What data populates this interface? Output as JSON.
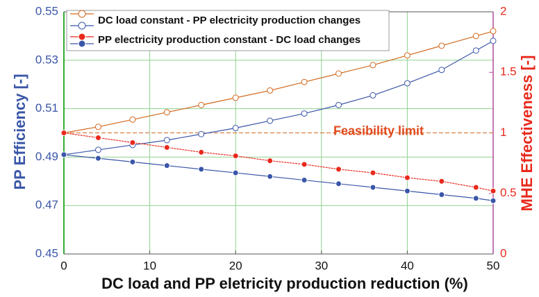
{
  "chart_data": {
    "type": "line",
    "x_label": "DC load and PP eletricity production reduction (%)",
    "y_label": "PP Efficiency  [-]",
    "y2_label": "MHE Effectiveness  [-]",
    "x": [
      0,
      4,
      8,
      12,
      16,
      20,
      24,
      28,
      32,
      36,
      40,
      44,
      48,
      50
    ],
    "series": [
      {
        "name": "DC load constant - PP electricity production changes",
        "color": "#d2691e",
        "marker": "open",
        "axis": "y2",
        "values": [
          1.0,
          1.05,
          1.11,
          1.17,
          1.23,
          1.29,
          1.35,
          1.42,
          1.49,
          1.56,
          1.64,
          1.72,
          1.8,
          1.84
        ]
      },
      {
        "name": "DC load constant - PP electricity production changes",
        "color": "#3a56a8",
        "marker": "open",
        "values": [
          0.491,
          0.493,
          0.495,
          0.497,
          0.4995,
          0.502,
          0.505,
          0.508,
          0.5115,
          0.5155,
          0.5205,
          0.526,
          0.534,
          0.538
        ]
      },
      {
        "name": "PP electricity production constant - DC load changes",
        "color": "#e8291c",
        "marker": "filled",
        "axis": "y2",
        "values": [
          1.0,
          0.96,
          0.92,
          0.88,
          0.84,
          0.81,
          0.77,
          0.74,
          0.7,
          0.67,
          0.63,
          0.6,
          0.55,
          0.52
        ]
      },
      {
        "name": "PP electricity production constant - DC load changes",
        "color": "#3a56a8",
        "marker": "filled",
        "values": [
          0.491,
          0.4895,
          0.488,
          0.4865,
          0.485,
          0.4835,
          0.482,
          0.4805,
          0.479,
          0.4775,
          0.476,
          0.4745,
          0.473,
          0.472
        ]
      }
    ],
    "feasibility_limit": {
      "value": 1,
      "label": "Feasibility limit"
    },
    "xlim": [
      0,
      50
    ],
    "xticks": [
      0,
      10,
      20,
      30,
      40,
      50
    ],
    "ylim": [
      0.45,
      0.55
    ],
    "yticks": [
      0.45,
      0.47,
      0.49,
      0.51,
      0.53,
      0.55
    ],
    "y2lim": [
      0,
      2
    ],
    "y2ticks": [
      0,
      0.5,
      1,
      1.5,
      2
    ],
    "grid": true,
    "legend": "upper left"
  }
}
